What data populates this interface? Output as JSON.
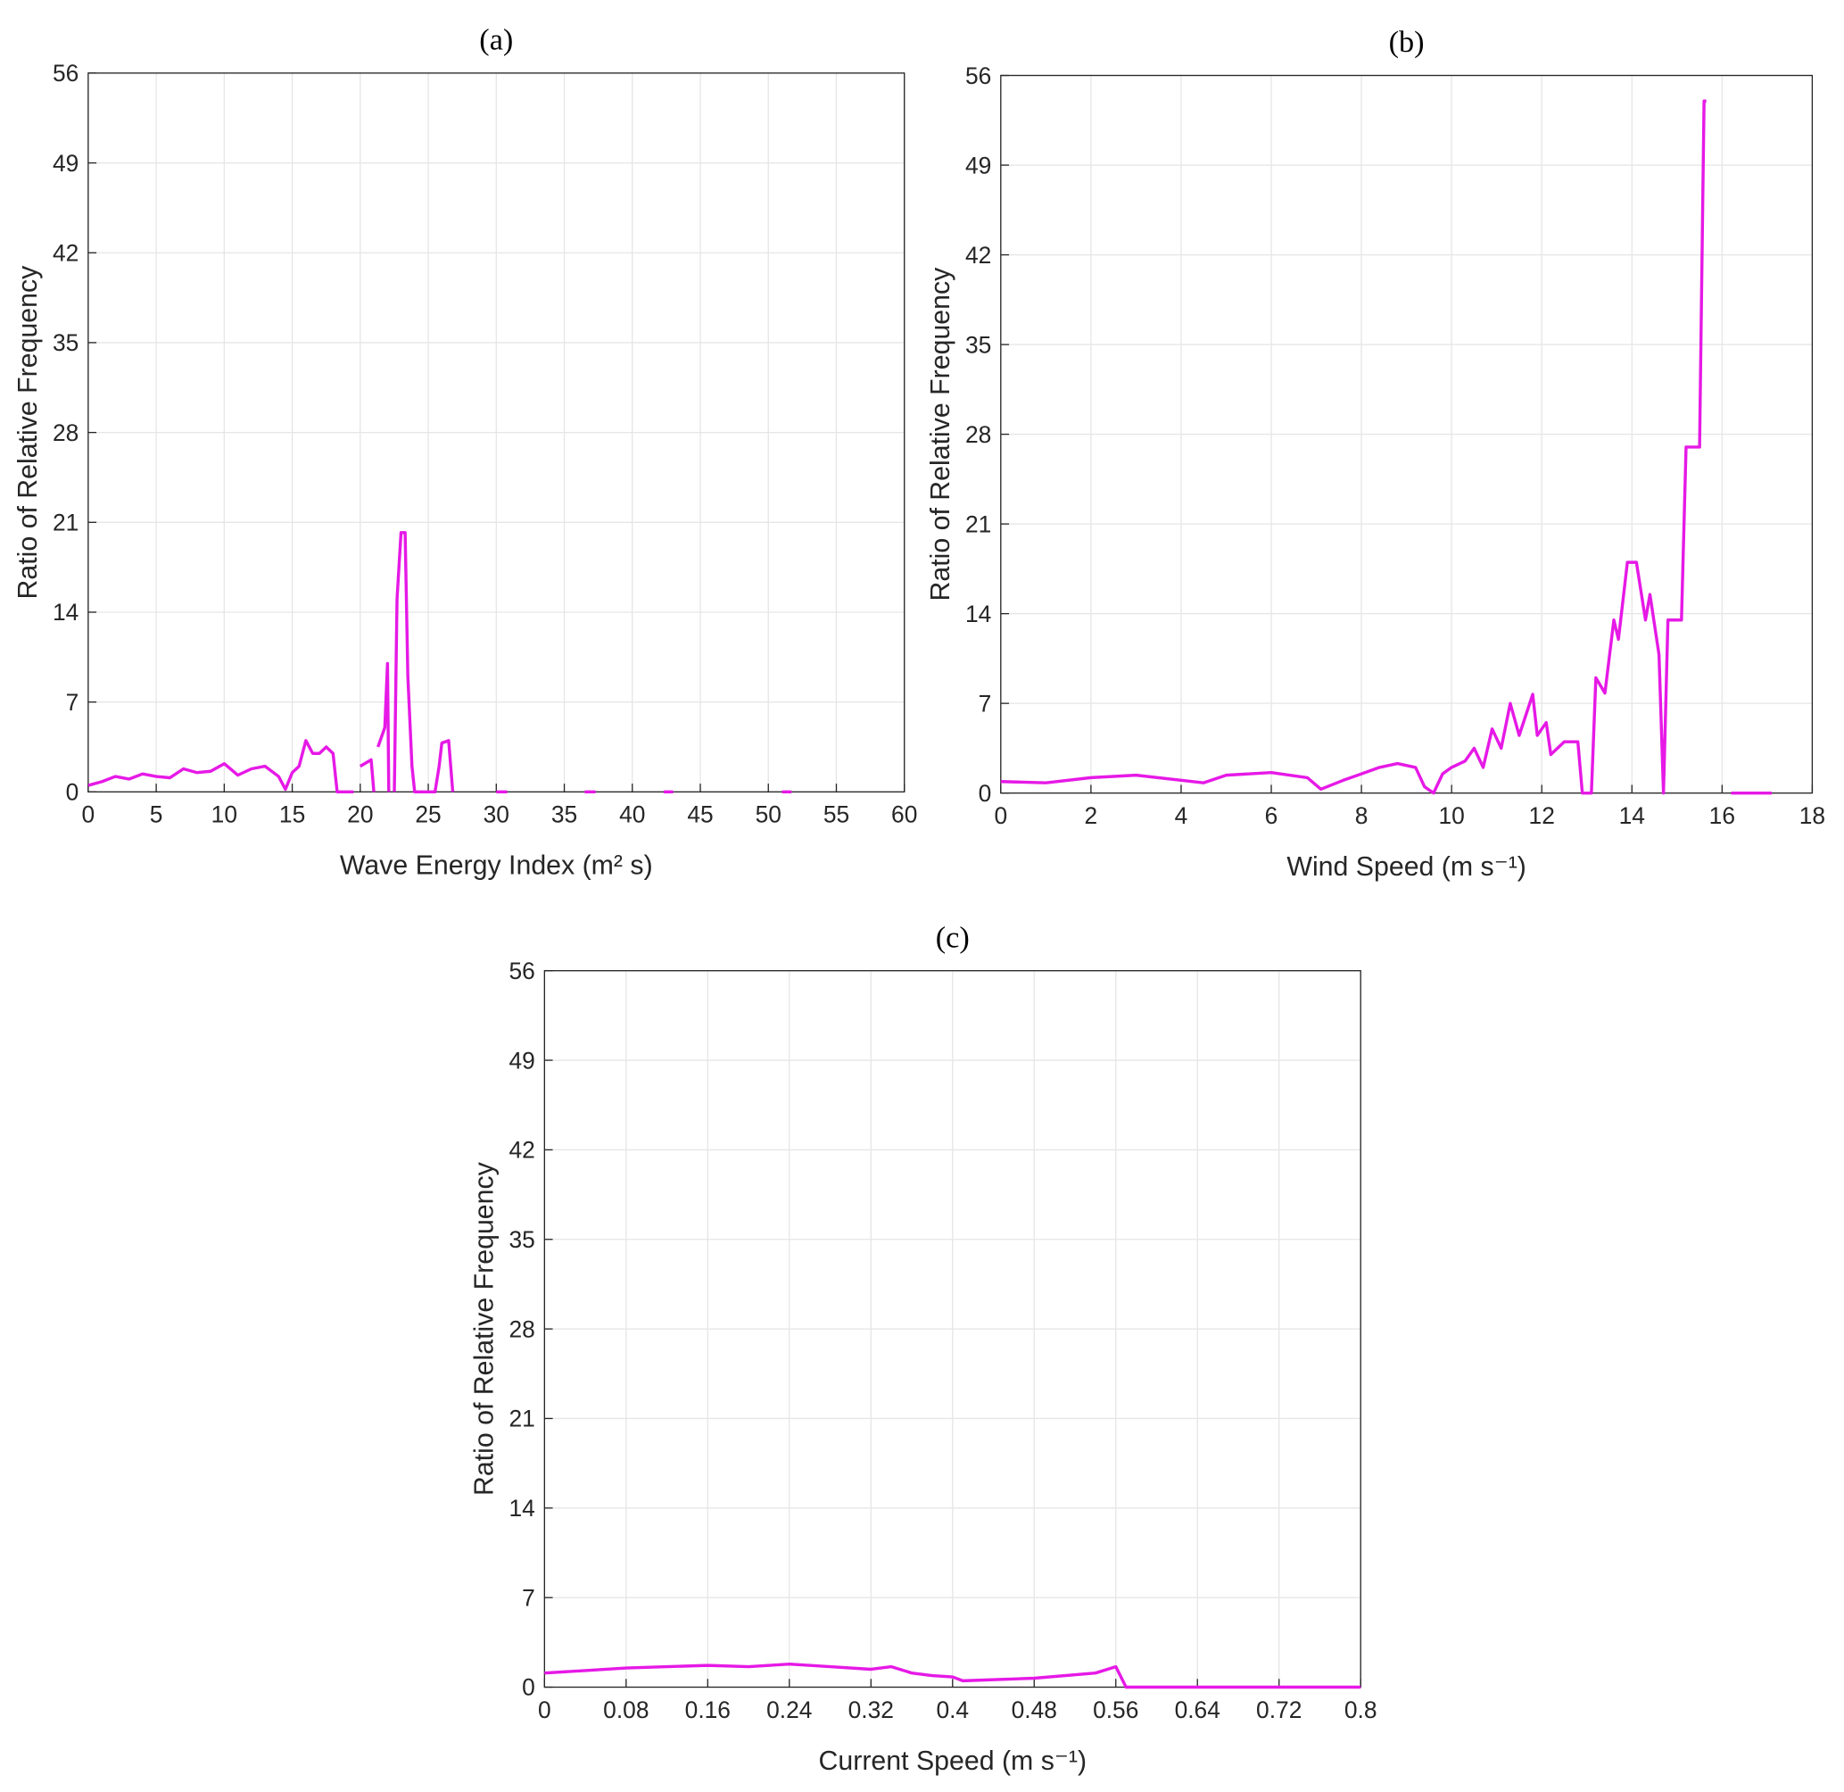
{
  "chart_data": [
    {
      "type": "line",
      "title": "(a)",
      "x_label": "Wave Energy Index (m² s)",
      "y_label": "Ratio of Relative Frequency",
      "color": "#e619e6",
      "grid": true,
      "xlim": [
        0,
        60
      ],
      "xticks": [
        0,
        5,
        10,
        15,
        20,
        25,
        30,
        35,
        40,
        45,
        50,
        55,
        60
      ],
      "ylim": [
        0,
        56
      ],
      "yticks": [
        0,
        7,
        14,
        21,
        28,
        35,
        42,
        49,
        56
      ],
      "x": [
        0,
        1,
        2,
        3,
        4,
        5,
        6,
        7,
        8,
        9,
        10,
        11,
        12,
        13,
        14,
        14.5,
        15,
        15.5,
        16,
        16.5,
        17,
        17.5,
        18,
        18.3,
        19.5,
        null,
        20,
        20.8,
        21,
        null,
        21.3,
        21.8,
        22,
        22.1,
        null,
        22.5,
        22.7,
        23,
        23.3,
        23.5,
        23.8,
        24,
        25.5,
        25.8,
        26,
        26.5,
        26.8,
        null,
        30,
        30.8,
        null,
        36.5,
        37.3,
        null,
        42.3,
        43,
        null,
        51,
        51.7
      ],
      "values": [
        0.5,
        0.8,
        1.2,
        1.0,
        1.4,
        1.2,
        1.1,
        1.8,
        1.5,
        1.6,
        2.2,
        1.3,
        1.8,
        2.0,
        1.2,
        0.2,
        1.5,
        2.0,
        4.0,
        3.0,
        3.0,
        3.5,
        3.0,
        0,
        0,
        null,
        2.0,
        2.5,
        0,
        null,
        3.5,
        5,
        10,
        0,
        null,
        0,
        15,
        20.2,
        20.2,
        9,
        2,
        0,
        0,
        2,
        3.8,
        4,
        0,
        null,
        0,
        0,
        null,
        0,
        0,
        null,
        0,
        0,
        null,
        0,
        0
      ]
    },
    {
      "type": "line",
      "title": "(b)",
      "x_label": "Wind Speed (m s⁻¹)",
      "y_label": "Ratio of Relative Frequency",
      "color": "#e619e6",
      "grid": true,
      "xlim": [
        0,
        18
      ],
      "xticks": [
        0,
        2,
        4,
        6,
        8,
        10,
        12,
        14,
        16,
        18
      ],
      "ylim": [
        0,
        56
      ],
      "yticks": [
        0,
        7,
        14,
        21,
        28,
        35,
        42,
        49,
        56
      ],
      "x": [
        0,
        1,
        2,
        3,
        4,
        4.5,
        5,
        6,
        6.8,
        7.1,
        7.6,
        8,
        8.4,
        8.8,
        9.2,
        9.4,
        9.6,
        9.8,
        10,
        10.3,
        10.5,
        10.7,
        10.9,
        11.1,
        11.3,
        11.5,
        11.8,
        11.9,
        12.1,
        12.2,
        12.5,
        12.8,
        12.9,
        13.1,
        13.2,
        13.4,
        13.6,
        13.7,
        13.9,
        14.1,
        14.3,
        14.4,
        14.6,
        14.7,
        14.8,
        15.1,
        15.2,
        15.5,
        15.6,
        15.65,
        null,
        16.2,
        17.1
      ],
      "values": [
        0.9,
        0.8,
        1.2,
        1.4,
        1.0,
        0.8,
        1.4,
        1.6,
        1.2,
        0.3,
        1.0,
        1.5,
        2.0,
        2.3,
        2.0,
        0.5,
        0,
        1.5,
        2.0,
        2.5,
        3.5,
        2.0,
        5,
        3.5,
        7,
        4.5,
        7.7,
        4.5,
        5.5,
        3,
        4,
        4,
        0,
        0,
        9,
        7.8,
        13.5,
        12,
        18,
        18,
        13.5,
        15.5,
        10.8,
        0,
        13.5,
        13.5,
        27,
        27,
        54,
        54,
        null,
        0,
        0
      ]
    },
    {
      "type": "line",
      "title": "(c)",
      "x_label": "Current Speed (m s⁻¹)",
      "y_label": "Ratio of Relative Frequency",
      "color": "#e619e6",
      "grid": true,
      "xlim": [
        0,
        0.8
      ],
      "xticks": [
        0,
        0.08,
        0.16,
        0.24,
        0.32,
        0.4,
        0.48,
        0.56,
        0.64,
        0.72,
        0.8
      ],
      "ylim": [
        0,
        56
      ],
      "yticks": [
        0,
        7,
        14,
        21,
        28,
        35,
        42,
        49,
        56
      ],
      "x": [
        0,
        0.04,
        0.08,
        0.12,
        0.16,
        0.2,
        0.24,
        0.28,
        0.32,
        0.34,
        0.36,
        0.38,
        0.4,
        0.41,
        0.48,
        0.54,
        0.56,
        0.57,
        0.8
      ],
      "values": [
        1.1,
        1.3,
        1.5,
        1.6,
        1.7,
        1.6,
        1.8,
        1.6,
        1.4,
        1.6,
        1.1,
        0.9,
        0.8,
        0.5,
        0.7,
        1.1,
        1.6,
        0,
        0
      ]
    }
  ]
}
